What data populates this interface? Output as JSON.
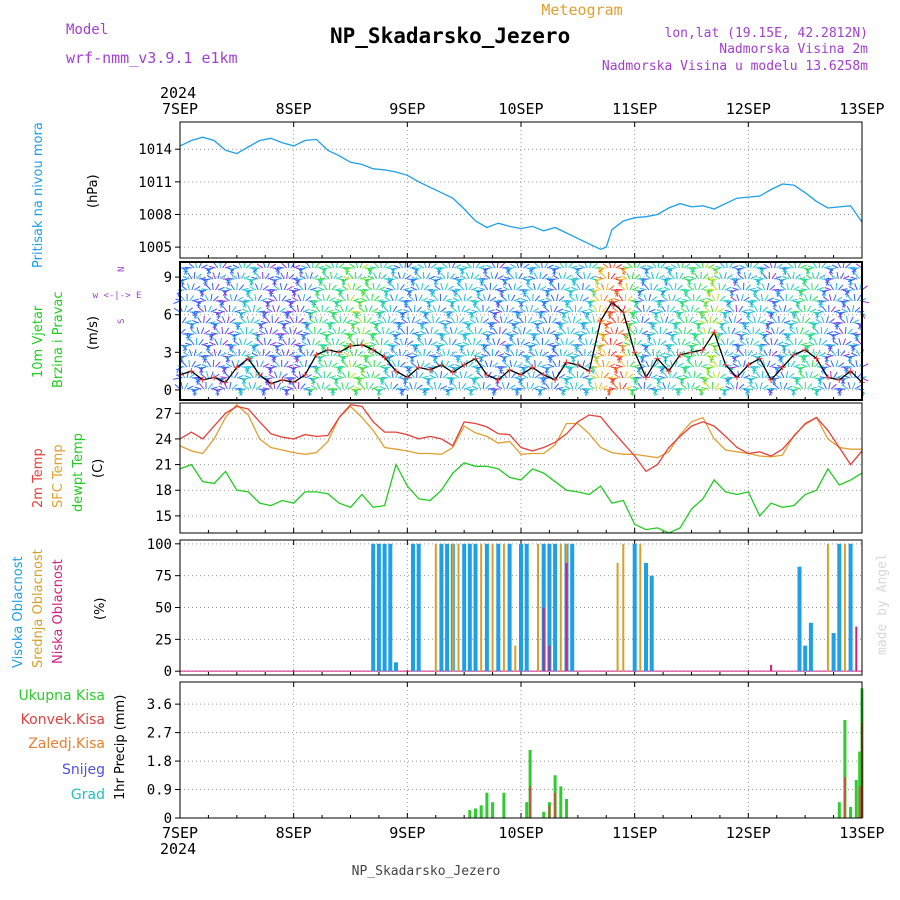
{
  "header": {
    "model_label": "Model",
    "model_name": "wrf-nmm_v3.9.1 e1km",
    "subtitle": "Meteogram",
    "title": "NP_Skadarsko_Jezero",
    "lonlat": "lon,lat (19.15E, 42.2812N)",
    "height_line1": "Nadmorska Visina 2m",
    "height_line2": "Nadmorska Visina u modelu 13.6258m",
    "year_top": "2024",
    "year_bottom": "2024",
    "footer": "NP_Skadarsko_Jezero",
    "watermark": "made by Angel"
  },
  "time_axis": {
    "labels": [
      "7SEP",
      "8SEP",
      "9SEP",
      "10SEP",
      "11SEP",
      "12SEP",
      "13SEP"
    ]
  },
  "colors": {
    "pressure": "#1ea0ea",
    "temp2m": "#e8403c",
    "sfctemp": "#e0a030",
    "dewpt": "#22cc22",
    "cloud_high": "#1e9fe8",
    "cloud_mid": "#d8a028",
    "cloud_low": "#d02080",
    "precip_total": "#2ecc2e",
    "precip_conv": "#e04040",
    "precip_frozen": "#e88030",
    "snow": "#5050e0",
    "hail": "#20c0c0",
    "wind_label": "#a040d0"
  },
  "panel_labels": {
    "pressure": {
      "title": "Pritisak na nivou mora",
      "unit": "(hPa)"
    },
    "wind": {
      "title1": "10m Vjetar",
      "title2": "Brzina i Pravac",
      "unit": "(m/s)",
      "rose": "w <-|-> E",
      "rose_n": "N",
      "rose_s": "S"
    },
    "temp": {
      "l1": "2m Temp",
      "l2": "SFC Temp",
      "l3": "dewpt Temp",
      "unit": "(C)"
    },
    "cloud": {
      "l1": "Visoka Oblacnost",
      "l2": "Srednja Oblacnost",
      "l3": "Niska Oblacnost",
      "unit": "(%)"
    },
    "precip": {
      "l1": "Ukupna Kisa",
      "l2": "Konvek.Kisa",
      "l3": "Zaledj.Kisa",
      "l4": "Snijeg",
      "l5": "Grad",
      "unit": "1hr Precip (mm)"
    }
  },
  "chart_data": [
    {
      "type": "line",
      "id": "pressure",
      "ylabel": "(hPa)",
      "ylim": [
        1004,
        1016.5
      ],
      "yticks": [
        "1005",
        "1008",
        "1011",
        "1014"
      ],
      "x_days": [
        0,
        0.1,
        0.2,
        0.3,
        0.4,
        0.5,
        0.6,
        0.7,
        0.8,
        0.9,
        1.0,
        1.1,
        1.2,
        1.3,
        1.4,
        1.5,
        1.6,
        1.7,
        1.8,
        1.9,
        2.0,
        2.1,
        2.2,
        2.3,
        2.4,
        2.5,
        2.6,
        2.7,
        2.8,
        2.9,
        3.0,
        3.1,
        3.2,
        3.3,
        3.4,
        3.5,
        3.6,
        3.7,
        3.75,
        3.8,
        3.9,
        4.0,
        4.1,
        4.2,
        4.3,
        4.4,
        4.5,
        4.6,
        4.7,
        4.8,
        4.9,
        5.0,
        5.1,
        5.2,
        5.3,
        5.4,
        5.5,
        5.6,
        5.7,
        5.8,
        5.9,
        6.0
      ],
      "series": [
        {
          "values": [
            1014.3,
            1014.8,
            1015.1,
            1014.8,
            1013.9,
            1013.6,
            1014.2,
            1014.8,
            1015.0,
            1014.6,
            1014.3,
            1014.8,
            1014.9,
            1013.9,
            1013.4,
            1012.8,
            1012.6,
            1012.2,
            1012.1,
            1011.9,
            1011.6,
            1011.0,
            1010.5,
            1010.0,
            1009.5,
            1008.5,
            1007.4,
            1006.8,
            1007.2,
            1006.9,
            1006.7,
            1006.9,
            1006.5,
            1006.8,
            1006.3,
            1005.8,
            1005.3,
            1004.8,
            1005.0,
            1006.6,
            1007.4,
            1007.7,
            1007.8,
            1008.0,
            1008.6,
            1009.0,
            1008.7,
            1008.8,
            1008.5,
            1009.0,
            1009.5,
            1009.6,
            1009.7,
            1010.3,
            1010.8,
            1010.7,
            1010.0,
            1009.2,
            1008.6,
            1008.7,
            1008.8,
            1007.3
          ]
        }
      ]
    },
    {
      "type": "line",
      "id": "wind",
      "ylabel": "(m/s)",
      "ylim": [
        -0.8,
        10.2
      ],
      "yticks": [
        "0",
        "3",
        "6",
        "9"
      ],
      "x_days": [
        0,
        0.1,
        0.2,
        0.3,
        0.4,
        0.5,
        0.6,
        0.7,
        0.8,
        0.9,
        1.0,
        1.1,
        1.2,
        1.3,
        1.4,
        1.5,
        1.6,
        1.7,
        1.8,
        1.9,
        2.0,
        2.1,
        2.2,
        2.3,
        2.4,
        2.5,
        2.6,
        2.7,
        2.8,
        2.9,
        3.0,
        3.1,
        3.2,
        3.3,
        3.4,
        3.5,
        3.6,
        3.7,
        3.8,
        3.9,
        4.0,
        4.1,
        4.2,
        4.3,
        4.4,
        4.5,
        4.6,
        4.7,
        4.8,
        4.9,
        5.0,
        5.1,
        5.2,
        5.3,
        5.4,
        5.5,
        5.6,
        5.7,
        5.8,
        5.9,
        6.0
      ],
      "series": [
        {
          "name": "speed",
          "values": [
            1.2,
            1.5,
            0.8,
            1.0,
            0.6,
            1.8,
            2.5,
            1.2,
            0.5,
            0.8,
            0.6,
            1.2,
            2.8,
            3.2,
            3.0,
            3.5,
            3.6,
            3.2,
            2.6,
            1.5,
            1.0,
            1.8,
            1.6,
            2.0,
            1.4,
            2.0,
            2.5,
            1.2,
            0.8,
            1.6,
            1.2,
            1.8,
            1.2,
            0.8,
            2.2,
            2.0,
            1.5,
            5.5,
            7.0,
            6.2,
            3.0,
            1.0,
            2.5,
            1.5,
            2.8,
            3.0,
            3.2,
            4.6,
            2.0,
            1.0,
            2.0,
            2.5,
            0.8,
            1.8,
            2.8,
            3.2,
            2.5,
            1.0,
            0.8,
            1.5,
            0.6
          ]
        }
      ]
    },
    {
      "type": "line",
      "id": "temperature",
      "ylabel": "(C)",
      "ylim": [
        13,
        28.2
      ],
      "yticks": [
        "15",
        "18",
        "21",
        "24",
        "27"
      ],
      "x_days": [
        0,
        0.1,
        0.2,
        0.3,
        0.4,
        0.5,
        0.6,
        0.7,
        0.8,
        0.9,
        1.0,
        1.1,
        1.2,
        1.3,
        1.4,
        1.5,
        1.6,
        1.7,
        1.8,
        1.9,
        2.0,
        2.1,
        2.2,
        2.3,
        2.4,
        2.5,
        2.6,
        2.7,
        2.8,
        2.9,
        3.0,
        3.1,
        3.2,
        3.3,
        3.4,
        3.5,
        3.6,
        3.7,
        3.8,
        3.9,
        4.0,
        4.1,
        4.2,
        4.3,
        4.4,
        4.5,
        4.6,
        4.7,
        4.8,
        4.9,
        5.0,
        5.1,
        5.2,
        5.3,
        5.4,
        5.5,
        5.6,
        5.7,
        5.8,
        5.9,
        6.0
      ],
      "series": [
        {
          "name": "2m Temp",
          "values": [
            24.0,
            24.8,
            24.0,
            25.5,
            27.0,
            27.8,
            27.5,
            26.0,
            24.6,
            24.2,
            24.0,
            24.5,
            24.3,
            24.4,
            26.5,
            28.0,
            27.8,
            26.0,
            24.8,
            24.8,
            24.5,
            24.0,
            24.3,
            24.0,
            23.2,
            26.0,
            25.8,
            25.4,
            24.6,
            24.5,
            23.0,
            22.6,
            23.0,
            23.6,
            24.6,
            26.0,
            26.8,
            26.6,
            25.0,
            23.5,
            22.0,
            20.2,
            21.0,
            23.0,
            24.3,
            25.5,
            26.0,
            25.5,
            24.3,
            23.0,
            22.3,
            22.5,
            22.0,
            22.8,
            24.3,
            25.8,
            26.5,
            25.0,
            23.0,
            21.0,
            22.6
          ]
        },
        {
          "name": "SFC Temp",
          "values": [
            23.2,
            22.6,
            22.3,
            24.0,
            26.5,
            28.0,
            26.8,
            24.0,
            23.0,
            22.7,
            22.4,
            22.2,
            22.4,
            23.7,
            26.5,
            27.8,
            26.5,
            25.0,
            23.0,
            22.8,
            22.6,
            22.3,
            22.3,
            22.2,
            23.0,
            25.5,
            24.7,
            24.3,
            23.5,
            23.7,
            22.2,
            22.3,
            22.3,
            23.3,
            25.8,
            25.8,
            24.6,
            23.0,
            22.4,
            22.2,
            22.2,
            22.0,
            21.8,
            22.5,
            24.5,
            26.0,
            26.5,
            24.0,
            22.7,
            22.5,
            22.3,
            22.0,
            21.9,
            22.1,
            24.4,
            25.7,
            26.5,
            24.0,
            23.0,
            22.8,
            22.8
          ]
        },
        {
          "name": "dewpt Temp",
          "values": [
            20.5,
            21.0,
            19.0,
            18.8,
            20.2,
            18.0,
            17.8,
            16.5,
            16.2,
            16.8,
            16.5,
            17.8,
            17.8,
            17.6,
            16.5,
            16.0,
            17.5,
            16.0,
            16.2,
            21.0,
            18.5,
            17.0,
            16.8,
            18.0,
            20.0,
            21.2,
            20.8,
            20.8,
            20.5,
            19.5,
            19.2,
            20.5,
            20.0,
            19.0,
            18.0,
            17.8,
            17.5,
            18.5,
            16.5,
            16.8,
            14.0,
            13.4,
            13.6,
            13.0,
            13.6,
            15.8,
            17.0,
            19.2,
            17.8,
            17.5,
            17.8,
            15.0,
            16.5,
            16.0,
            16.2,
            17.5,
            18.0,
            20.5,
            18.6,
            19.2,
            20.0
          ]
        }
      ]
    },
    {
      "type": "bar",
      "id": "cloud",
      "ylabel": "(%)",
      "ylim": [
        -3,
        103
      ],
      "yticks": [
        "0",
        "25",
        "50",
        "75",
        "100"
      ],
      "series": [
        {
          "name": "Visoka Oblacnost",
          "bars": [
            [
              1.7,
              100
            ],
            [
              1.75,
              100
            ],
            [
              1.8,
              100
            ],
            [
              1.85,
              100
            ],
            [
              1.9,
              7
            ],
            [
              2.05,
              100
            ],
            [
              2.1,
              100
            ],
            [
              2.3,
              100
            ],
            [
              2.35,
              100
            ],
            [
              2.4,
              100
            ],
            [
              2.5,
              100
            ],
            [
              2.55,
              100
            ],
            [
              2.6,
              100
            ],
            [
              2.7,
              100
            ],
            [
              2.8,
              100
            ],
            [
              2.9,
              100
            ],
            [
              3.0,
              100
            ],
            [
              3.05,
              100
            ],
            [
              3.2,
              100
            ],
            [
              3.25,
              100
            ],
            [
              3.3,
              100
            ],
            [
              3.4,
              100
            ],
            [
              3.45,
              100
            ],
            [
              4.0,
              100
            ],
            [
              4.1,
              85
            ],
            [
              4.15,
              75
            ],
            [
              5.45,
              82
            ],
            [
              5.5,
              20
            ],
            [
              5.55,
              38
            ],
            [
              5.75,
              30
            ],
            [
              5.8,
              100
            ],
            [
              5.9,
              100
            ]
          ]
        },
        {
          "name": "Srednja Oblacnost",
          "bars": [
            [
              2.25,
              100
            ],
            [
              2.4,
              100
            ],
            [
              2.45,
              100
            ],
            [
              2.65,
              100
            ],
            [
              2.75,
              100
            ],
            [
              2.85,
              100
            ],
            [
              2.95,
              20
            ],
            [
              3.15,
              100
            ],
            [
              3.35,
              100
            ],
            [
              3.4,
              100
            ],
            [
              3.85,
              85
            ],
            [
              3.9,
              100
            ],
            [
              4.05,
              100
            ],
            [
              5.7,
              100
            ],
            [
              5.85,
              100
            ]
          ]
        },
        {
          "name": "Niska Oblacnost",
          "bars": [
            [
              3.2,
              50
            ],
            [
              3.25,
              20
            ],
            [
              3.4,
              85
            ],
            [
              5.2,
              5
            ],
            [
              5.95,
              35
            ]
          ]
        }
      ]
    },
    {
      "type": "bar",
      "id": "precip",
      "ylabel": "1hr Precip (mm)",
      "ylim": [
        0,
        4.3
      ],
      "yticks": [
        "0",
        "0.9",
        "1.8",
        "2.7",
        "3.6"
      ],
      "series": [
        {
          "name": "Ukupna Kisa",
          "bars": [
            [
              2.55,
              0.25
            ],
            [
              2.6,
              0.3
            ],
            [
              2.65,
              0.4
            ],
            [
              2.7,
              0.8
            ],
            [
              2.75,
              0.5
            ],
            [
              2.85,
              0.8
            ],
            [
              3.05,
              0.5
            ],
            [
              3.08,
              2.15
            ],
            [
              3.2,
              0.2
            ],
            [
              3.25,
              0.5
            ],
            [
              3.3,
              1.35
            ],
            [
              3.35,
              1.0
            ],
            [
              3.4,
              0.6
            ],
            [
              5.8,
              0.5
            ],
            [
              5.85,
              3.1
            ],
            [
              5.9,
              0.35
            ],
            [
              5.95,
              1.2
            ],
            [
              5.98,
              2.1
            ],
            [
              6.0,
              4.1
            ]
          ]
        },
        {
          "name": "Konvek.Kisa",
          "bars": [
            [
              3.08,
              1.0
            ],
            [
              3.25,
              0.4
            ],
            [
              3.3,
              0.8
            ],
            [
              5.85,
              1.3
            ],
            [
              5.98,
              1.0
            ],
            [
              6.0,
              3.0
            ]
          ]
        }
      ]
    }
  ]
}
